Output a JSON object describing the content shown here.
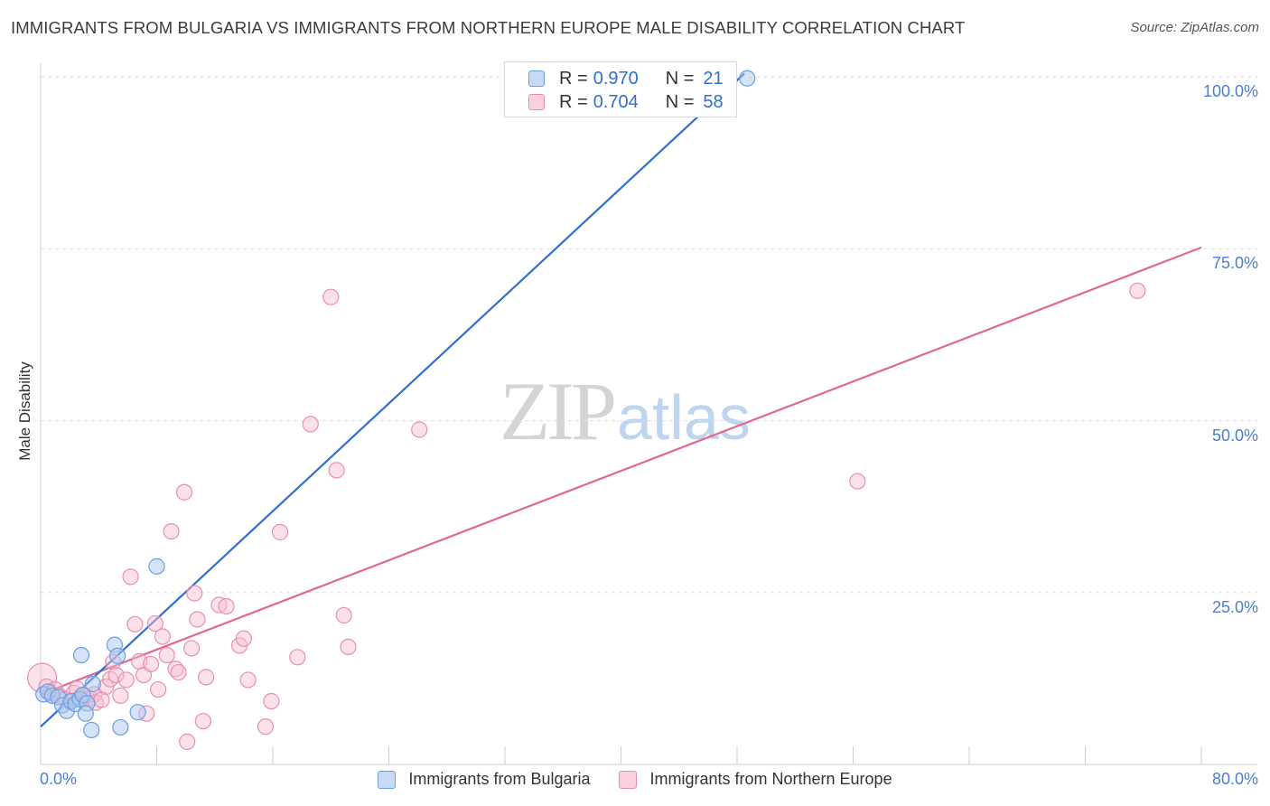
{
  "title": "IMMIGRANTS FROM BULGARIA VS IMMIGRANTS FROM NORTHERN EUROPE MALE DISABILITY CORRELATION CHART",
  "source": "Source: ZipAtlas.com",
  "watermark": {
    "zip": "ZIP",
    "atlas": "atlas"
  },
  "legend": {
    "r_label": "R =",
    "n_label": "N =",
    "rows": [
      {
        "r": "0.970",
        "n": "21"
      },
      {
        "r": "0.704",
        "n": "58"
      }
    ]
  },
  "colors": {
    "bulgaria_fill": "#a9c8ef",
    "bulgaria_stroke": "#6a9fe0",
    "bulgaria_line": "#2f6fcf",
    "northern_fill": "#f7bfd0",
    "northern_stroke": "#e98fae",
    "northern_line": "#e0679a",
    "grid": "#dddddd",
    "tick_text": "#4a7fd0"
  },
  "chart_data": {
    "type": "scatter",
    "title": "IMMIGRANTS FROM BULGARIA VS IMMIGRANTS FROM NORTHERN EUROPE MALE DISABILITY CORRELATION CHART",
    "xlabel": "",
    "ylabel": "Male Disability",
    "xlim": [
      0,
      80
    ],
    "ylim": [
      0,
      102
    ],
    "x_tick_labels": [
      {
        "value": 0,
        "label": "0.0%"
      },
      {
        "value": 80,
        "label": "80.0%"
      }
    ],
    "y_tick_labels": [
      {
        "value": 25,
        "label": "25.0%"
      },
      {
        "value": 50,
        "label": "50.0%"
      },
      {
        "value": 75,
        "label": "75.0%"
      },
      {
        "value": 100,
        "label": "100.0%"
      }
    ],
    "x_minor_ticks": [
      0,
      8,
      16,
      24,
      32,
      40,
      48,
      56,
      64,
      72,
      80
    ],
    "grid": true,
    "legend_position": "top-center",
    "series": [
      {
        "name": "Immigrants from Bulgaria",
        "r": 0.97,
        "n": 21,
        "trend": {
          "x": [
            0,
            48.5
          ],
          "y": [
            5.5,
            100.5
          ]
        },
        "points": [
          {
            "x": 0.2,
            "y": 10.2
          },
          {
            "x": 0.5,
            "y": 10.6
          },
          {
            "x": 0.8,
            "y": 10.0
          },
          {
            "x": 1.2,
            "y": 9.8
          },
          {
            "x": 1.5,
            "y": 8.6
          },
          {
            "x": 1.8,
            "y": 7.8
          },
          {
            "x": 2.1,
            "y": 9.2
          },
          {
            "x": 2.4,
            "y": 8.8
          },
          {
            "x": 2.7,
            "y": 9.5
          },
          {
            "x": 2.9,
            "y": 10.1
          },
          {
            "x": 3.2,
            "y": 8.9
          },
          {
            "x": 2.8,
            "y": 15.9
          },
          {
            "x": 3.1,
            "y": 7.4
          },
          {
            "x": 3.6,
            "y": 11.7
          },
          {
            "x": 3.5,
            "y": 5.0
          },
          {
            "x": 5.1,
            "y": 17.4
          },
          {
            "x": 5.3,
            "y": 15.8
          },
          {
            "x": 5.5,
            "y": 5.4
          },
          {
            "x": 6.7,
            "y": 7.6
          },
          {
            "x": 8.0,
            "y": 28.8
          },
          {
            "x": 48.7,
            "y": 99.8
          }
        ]
      },
      {
        "name": "Immigrants from Northern Europe",
        "r": 0.704,
        "n": 58,
        "trend": {
          "x": [
            0,
            80
          ],
          "y": [
            10.2,
            75.2
          ]
        },
        "points": [
          {
            "x": 0.1,
            "y": 12.6,
            "size": "large"
          },
          {
            "x": 0.4,
            "y": 11.3
          },
          {
            "x": 0.7,
            "y": 10.4
          },
          {
            "x": 1.0,
            "y": 10.9
          },
          {
            "x": 1.3,
            "y": 10.0
          },
          {
            "x": 1.7,
            "y": 9.5
          },
          {
            "x": 2.0,
            "y": 9.1
          },
          {
            "x": 2.3,
            "y": 10.4
          },
          {
            "x": 2.7,
            "y": 9.8
          },
          {
            "x": 3.1,
            "y": 10.0
          },
          {
            "x": 3.4,
            "y": 9.6
          },
          {
            "x": 3.7,
            "y": 10.2
          },
          {
            "x": 3.8,
            "y": 9.0
          },
          {
            "x": 4.5,
            "y": 11.3
          },
          {
            "x": 4.8,
            "y": 12.4
          },
          {
            "x": 5.0,
            "y": 14.9
          },
          {
            "x": 5.2,
            "y": 13.0
          },
          {
            "x": 5.5,
            "y": 10.0
          },
          {
            "x": 5.9,
            "y": 12.3
          },
          {
            "x": 6.2,
            "y": 27.3
          },
          {
            "x": 6.5,
            "y": 20.4
          },
          {
            "x": 6.8,
            "y": 15.0
          },
          {
            "x": 7.1,
            "y": 13.0
          },
          {
            "x": 7.3,
            "y": 7.4
          },
          {
            "x": 7.6,
            "y": 14.6
          },
          {
            "x": 7.9,
            "y": 20.5
          },
          {
            "x": 8.1,
            "y": 10.9
          },
          {
            "x": 8.4,
            "y": 18.6
          },
          {
            "x": 8.7,
            "y": 15.9
          },
          {
            "x": 9.0,
            "y": 33.9
          },
          {
            "x": 9.3,
            "y": 13.9
          },
          {
            "x": 9.5,
            "y": 13.4
          },
          {
            "x": 9.9,
            "y": 39.6
          },
          {
            "x": 10.1,
            "y": 3.3
          },
          {
            "x": 10.4,
            "y": 16.9
          },
          {
            "x": 10.6,
            "y": 24.9
          },
          {
            "x": 10.8,
            "y": 21.1
          },
          {
            "x": 11.2,
            "y": 6.3
          },
          {
            "x": 11.4,
            "y": 12.7
          },
          {
            "x": 12.3,
            "y": 23.2
          },
          {
            "x": 12.8,
            "y": 23.0
          },
          {
            "x": 13.7,
            "y": 17.3
          },
          {
            "x": 14.0,
            "y": 18.3
          },
          {
            "x": 14.3,
            "y": 12.3
          },
          {
            "x": 15.5,
            "y": 5.5
          },
          {
            "x": 15.9,
            "y": 9.2
          },
          {
            "x": 16.5,
            "y": 33.8
          },
          {
            "x": 17.7,
            "y": 15.6
          },
          {
            "x": 18.6,
            "y": 49.5
          },
          {
            "x": 20.0,
            "y": 68.0
          },
          {
            "x": 20.4,
            "y": 42.8
          },
          {
            "x": 20.9,
            "y": 21.7
          },
          {
            "x": 21.2,
            "y": 17.1
          },
          {
            "x": 26.1,
            "y": 48.7
          },
          {
            "x": 56.3,
            "y": 41.2
          },
          {
            "x": 75.6,
            "y": 68.9
          },
          {
            "x": 2.5,
            "y": 11.0
          },
          {
            "x": 4.2,
            "y": 9.4
          }
        ]
      }
    ]
  }
}
